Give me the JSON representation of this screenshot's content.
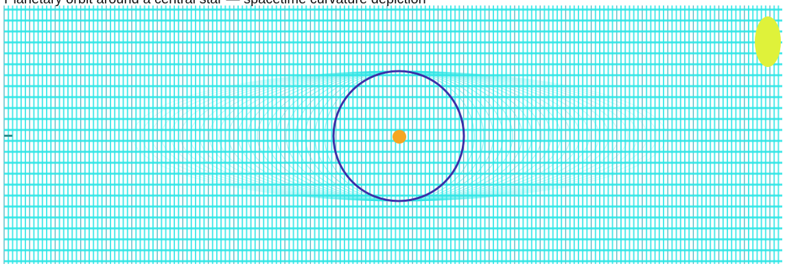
{
  "caption": "Planetary orbit around a central star — spacetime curvature depiction",
  "colors": {
    "background": "#ffffff",
    "grid_line": "#2ee6e6",
    "grid_line_dark": "#1aa6b0",
    "orbit": "#3b2fa8",
    "star": "#f5a623",
    "planet": "#dff23a",
    "marker": "#2a8c8c"
  },
  "icons": {
    "star": "sun-dot-icon",
    "planet": "planet-oval-icon"
  }
}
